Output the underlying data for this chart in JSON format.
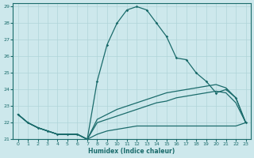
{
  "xlabel": "Humidex (Indice chaleur)",
  "bg_color": "#cde8ec",
  "grid_color": "#b0d4d8",
  "line_color": "#1a6b6b",
  "spine_color": "#1a6b6b",
  "xlim": [
    -0.5,
    23.5
  ],
  "ylim": [
    21,
    29.2
  ],
  "x_ticks": [
    0,
    1,
    2,
    3,
    4,
    5,
    6,
    7,
    8,
    9,
    10,
    11,
    12,
    13,
    14,
    15,
    16,
    17,
    18,
    19,
    20,
    21,
    22,
    23
  ],
  "yticks": [
    21,
    22,
    23,
    24,
    25,
    26,
    27,
    28,
    29
  ],
  "line1_x": [
    0,
    1,
    2,
    3,
    4,
    5,
    6,
    7,
    8,
    9,
    10,
    11,
    12,
    13,
    14,
    15,
    16,
    17,
    18,
    19,
    20,
    21,
    22,
    23
  ],
  "line1_y": [
    22.5,
    22.0,
    21.7,
    21.5,
    21.3,
    21.3,
    21.3,
    21.0,
    24.5,
    26.7,
    28.0,
    28.8,
    29.0,
    28.8,
    28.0,
    27.2,
    25.9,
    25.8,
    25.0,
    24.5,
    23.8,
    24.0,
    23.5,
    22.0
  ],
  "line2_x": [
    0,
    1,
    2,
    3,
    4,
    5,
    6,
    7,
    8,
    9,
    10,
    11,
    12,
    13,
    14,
    15,
    16,
    17,
    18,
    19,
    20,
    21,
    22,
    23
  ],
  "line2_y": [
    22.5,
    22.0,
    21.7,
    21.5,
    21.3,
    21.3,
    21.3,
    21.0,
    22.2,
    22.5,
    22.8,
    23.0,
    23.2,
    23.4,
    23.6,
    23.8,
    23.9,
    24.0,
    24.1,
    24.2,
    24.3,
    24.1,
    23.5,
    22.0
  ],
  "line3_x": [
    0,
    1,
    2,
    3,
    4,
    5,
    6,
    7,
    8,
    9,
    10,
    11,
    12,
    13,
    14,
    15,
    16,
    17,
    18,
    19,
    20,
    21,
    22,
    23
  ],
  "line3_y": [
    22.5,
    22.0,
    21.7,
    21.5,
    21.3,
    21.3,
    21.3,
    21.0,
    22.0,
    22.2,
    22.4,
    22.6,
    22.8,
    23.0,
    23.2,
    23.3,
    23.5,
    23.6,
    23.7,
    23.8,
    23.9,
    23.8,
    23.2,
    22.0
  ],
  "line4_x": [
    0,
    1,
    2,
    3,
    4,
    5,
    6,
    7,
    8,
    9,
    10,
    11,
    12,
    13,
    14,
    15,
    16,
    17,
    18,
    19,
    20,
    21,
    22,
    23
  ],
  "line4_y": [
    22.5,
    22.0,
    21.7,
    21.5,
    21.3,
    21.3,
    21.3,
    21.0,
    21.3,
    21.5,
    21.6,
    21.7,
    21.8,
    21.8,
    21.8,
    21.8,
    21.8,
    21.8,
    21.8,
    21.8,
    21.8,
    21.8,
    21.8,
    22.0
  ]
}
